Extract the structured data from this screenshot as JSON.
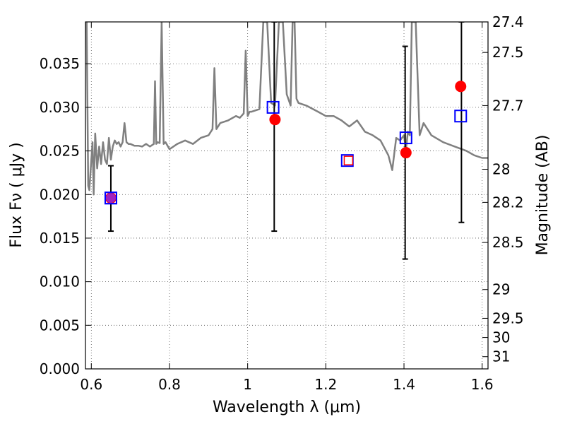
{
  "chart_data": {
    "type": "scatter",
    "xlabel": "Wavelength  λ (μm)",
    "ylabel": "Flux  Fν  ( μJy )",
    "y2label": "Magnitude (AB)",
    "xlim": [
      0.585,
      1.615
    ],
    "ylim": [
      0.0,
      0.0398
    ],
    "x_ticks": [
      0.6,
      0.8,
      1.0,
      1.2,
      1.4,
      1.6
    ],
    "x_tick_labels": [
      "0.6",
      "0.8",
      "1",
      "1.2",
      "1.4",
      "1.6"
    ],
    "y_ticks": [
      0.0,
      0.005,
      0.01,
      0.015,
      0.02,
      0.025,
      0.03,
      0.035
    ],
    "y_tick_labels": [
      "0.000",
      "0.005",
      "0.010",
      "0.015",
      "0.020",
      "0.025",
      "0.030",
      "0.035"
    ],
    "mag_ticks": [
      {
        "label": "27.4",
        "flux": 0.0398
      },
      {
        "label": "27.5",
        "flux": 0.0363
      },
      {
        "label": "27.7",
        "flux": 0.0302
      },
      {
        "label": "28",
        "flux": 0.0229
      },
      {
        "label": "28.2",
        "flux": 0.0191
      },
      {
        "label": "28.5",
        "flux": 0.0145
      },
      {
        "label": "29",
        "flux": 0.0091
      },
      {
        "label": "29.5",
        "flux": 0.0058
      },
      {
        "label": "30",
        "flux": 0.0036
      },
      {
        "label": "31",
        "flux": 0.0014
      }
    ],
    "grid": true,
    "series": [
      {
        "style": "line",
        "color": "#808080",
        "x": [
          0.588,
          0.592,
          0.595,
          0.6,
          0.603,
          0.606,
          0.61,
          0.615,
          0.62,
          0.625,
          0.63,
          0.635,
          0.64,
          0.645,
          0.65,
          0.655,
          0.66,
          0.665,
          0.67,
          0.675,
          0.68,
          0.685,
          0.69,
          0.695,
          0.7,
          0.71,
          0.72,
          0.73,
          0.74,
          0.75,
          0.76,
          0.763,
          0.766,
          0.77,
          0.775,
          0.78,
          0.785,
          0.79,
          0.8,
          0.82,
          0.84,
          0.86,
          0.88,
          0.9,
          0.91,
          0.915,
          0.92,
          0.93,
          0.95,
          0.97,
          0.98,
          0.99,
          0.995,
          1.0,
          1.005,
          1.01,
          1.03,
          1.04,
          1.05,
          1.06,
          1.07,
          1.08,
          1.09,
          1.1,
          1.11,
          1.115,
          1.12,
          1.125,
          1.13,
          1.15,
          1.18,
          1.2,
          1.22,
          1.24,
          1.26,
          1.28,
          1.3,
          1.32,
          1.34,
          1.36,
          1.37,
          1.38,
          1.39,
          1.4,
          1.405,
          1.41,
          1.415,
          1.42,
          1.43,
          1.44,
          1.45,
          1.47,
          1.5,
          1.53,
          1.56,
          1.58,
          1.6,
          1.615
        ],
        "y": [
          0.0398,
          0.021,
          0.0205,
          0.024,
          0.026,
          0.02,
          0.027,
          0.023,
          0.0255,
          0.0235,
          0.026,
          0.024,
          0.0235,
          0.0265,
          0.024,
          0.0255,
          0.0262,
          0.0258,
          0.026,
          0.0255,
          0.026,
          0.0282,
          0.026,
          0.0258,
          0.0258,
          0.0256,
          0.0256,
          0.0255,
          0.0258,
          0.0255,
          0.0258,
          0.033,
          0.0258,
          0.026,
          0.0259,
          0.0398,
          0.0258,
          0.026,
          0.0252,
          0.0258,
          0.0262,
          0.0258,
          0.0265,
          0.0268,
          0.0275,
          0.0345,
          0.0275,
          0.0282,
          0.0285,
          0.029,
          0.0288,
          0.0293,
          0.0365,
          0.029,
          0.0295,
          0.0295,
          0.0298,
          0.0398,
          0.0398,
          0.0305,
          0.0302,
          0.0398,
          0.0398,
          0.0315,
          0.0302,
          0.0398,
          0.0398,
          0.031,
          0.0305,
          0.0302,
          0.0295,
          0.029,
          0.029,
          0.0285,
          0.0278,
          0.0285,
          0.0272,
          0.0268,
          0.0262,
          0.0245,
          0.0228,
          0.0265,
          0.0262,
          0.0268,
          0.0252,
          0.0272,
          0.0268,
          0.0398,
          0.0398,
          0.0268,
          0.0282,
          0.0268,
          0.026,
          0.0255,
          0.025,
          0.0245,
          0.0242,
          0.0242
        ]
      },
      {
        "style": "marker",
        "marker": "circle",
        "color": "#ff0000",
        "points": [
          {
            "x": 0.65,
            "y": 0.0196
          },
          {
            "x": 1.07,
            "y": 0.0286
          },
          {
            "x": 1.405,
            "y": 0.0248
          },
          {
            "x": 1.545,
            "y": 0.0324
          }
        ]
      },
      {
        "style": "marker",
        "marker": "square",
        "color": "#0000ff",
        "points": [
          {
            "x": 0.65,
            "y": 0.0196
          },
          {
            "x": 1.065,
            "y": 0.03
          },
          {
            "x": 1.255,
            "y": 0.0239
          },
          {
            "x": 1.405,
            "y": 0.0265
          },
          {
            "x": 1.545,
            "y": 0.029
          }
        ]
      },
      {
        "style": "marker",
        "marker": "square-small",
        "color": "#ff0000",
        "points": [
          {
            "x": 1.258,
            "y": 0.0239
          }
        ]
      },
      {
        "style": "errorbar",
        "color": "#000000",
        "points": [
          {
            "x": 0.65,
            "low": 0.0158,
            "high": 0.0233
          },
          {
            "x": 1.068,
            "low": 0.0158,
            "high": 0.0398
          },
          {
            "x": 1.403,
            "low": 0.0126,
            "high": 0.037
          },
          {
            "x": 1.547,
            "low": 0.0168,
            "high": 0.0398
          }
        ]
      }
    ]
  }
}
